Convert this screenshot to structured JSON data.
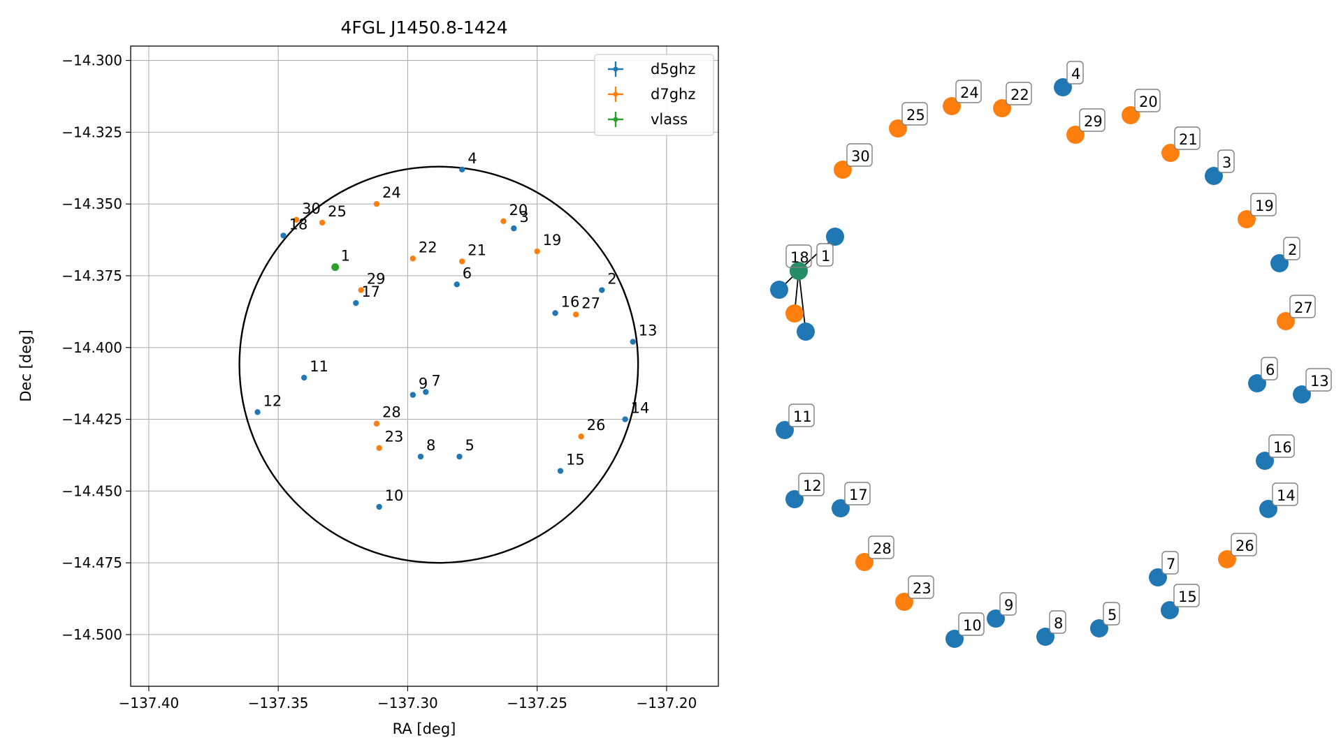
{
  "chart_data": [
    {
      "type": "scatter",
      "title": "4FGL J1450.8-1424",
      "xlabel": "RA [deg]",
      "ylabel": "Dec [deg]",
      "xlim": [
        -137.407,
        -137.18
      ],
      "ylim": [
        -14.518,
        -14.295
      ],
      "xticks": [
        -137.4,
        -137.35,
        -137.3,
        -137.25,
        -137.2
      ],
      "xtick_labels": [
        "−137.40",
        "−137.35",
        "−137.30",
        "−137.25",
        "−137.20"
      ],
      "yticks": [
        -14.3,
        -14.325,
        -14.35,
        -14.375,
        -14.4,
        -14.425,
        -14.45,
        -14.475,
        -14.5
      ],
      "ytick_labels": [
        "−14.300",
        "−14.325",
        "−14.350",
        "−14.375",
        "−14.400",
        "−14.425",
        "−14.450",
        "−14.475",
        "−14.500"
      ],
      "grid": true,
      "legend_position": "top-right",
      "circle": {
        "center": [
          -137.288,
          -14.406
        ],
        "radius_ra": 0.077,
        "radius_dec": 0.069
      },
      "series": [
        {
          "name": "d5ghz",
          "color": "#1f77b4",
          "points": [
            {
              "label": "2",
              "x": -137.225,
              "y": -14.38
            },
            {
              "label": "3",
              "x": -137.259,
              "y": -14.3585
            },
            {
              "label": "4",
              "x": -137.279,
              "y": -14.338
            },
            {
              "label": "5",
              "x": -137.28,
              "y": -14.438
            },
            {
              "label": "6",
              "x": -137.281,
              "y": -14.378
            },
            {
              "label": "7",
              "x": -137.293,
              "y": -14.4155
            },
            {
              "label": "8",
              "x": -137.295,
              "y": -14.438
            },
            {
              "label": "9",
              "x": -137.298,
              "y": -14.4165
            },
            {
              "label": "10",
              "x": -137.311,
              "y": -14.4555
            },
            {
              "label": "11",
              "x": -137.34,
              "y": -14.4105
            },
            {
              "label": "12",
              "x": -137.358,
              "y": -14.4225
            },
            {
              "label": "13",
              "x": -137.213,
              "y": -14.398
            },
            {
              "label": "14",
              "x": -137.216,
              "y": -14.425
            },
            {
              "label": "15",
              "x": -137.241,
              "y": -14.443
            },
            {
              "label": "16",
              "x": -137.243,
              "y": -14.388
            },
            {
              "label": "17",
              "x": -137.32,
              "y": -14.3845
            },
            {
              "label": "18",
              "x": -137.348,
              "y": -14.361
            }
          ]
        },
        {
          "name": "d7ghz",
          "color": "#ff7f0e",
          "points": [
            {
              "label": "19",
              "x": -137.25,
              "y": -14.3665
            },
            {
              "label": "20",
              "x": -137.263,
              "y": -14.356
            },
            {
              "label": "21",
              "x": -137.279,
              "y": -14.37
            },
            {
              "label": "22",
              "x": -137.298,
              "y": -14.369
            },
            {
              "label": "23",
              "x": -137.311,
              "y": -14.435
            },
            {
              "label": "24",
              "x": -137.312,
              "y": -14.35
            },
            {
              "label": "25",
              "x": -137.333,
              "y": -14.3565
            },
            {
              "label": "26",
              "x": -137.233,
              "y": -14.431
            },
            {
              "label": "27",
              "x": -137.235,
              "y": -14.3885
            },
            {
              "label": "28",
              "x": -137.312,
              "y": -14.4265
            },
            {
              "label": "29",
              "x": -137.318,
              "y": -14.38
            },
            {
              "label": "30",
              "x": -137.343,
              "y": -14.3555
            }
          ]
        },
        {
          "name": "vlass",
          "color": "#2ca02c",
          "points": [
            {
              "label": "1",
              "x": -137.328,
              "y": -14.372
            }
          ]
        }
      ]
    },
    {
      "type": "scatter",
      "subtype": "network-layout",
      "nodes": [
        {
          "label": "4",
          "group": "d5ghz"
        },
        {
          "label": "24",
          "group": "d7ghz"
        },
        {
          "label": "22",
          "group": "d7ghz"
        },
        {
          "label": "25",
          "group": "d7ghz"
        },
        {
          "label": "20",
          "group": "d7ghz"
        },
        {
          "label": "29",
          "group": "d7ghz"
        },
        {
          "label": "30",
          "group": "d7ghz"
        },
        {
          "label": "21",
          "group": "d7ghz"
        },
        {
          "label": "3",
          "group": "d5ghz"
        },
        {
          "label": "19",
          "group": "d7ghz"
        },
        {
          "label": "2",
          "group": "d5ghz"
        },
        {
          "label": "27",
          "group": "d7ghz"
        },
        {
          "label": "18",
          "group": "d5ghz"
        },
        {
          "label": "1",
          "group": "vlass"
        },
        {
          "label": "6",
          "group": "d5ghz"
        },
        {
          "label": "13",
          "group": "d5ghz"
        },
        {
          "label": "11",
          "group": "d5ghz"
        },
        {
          "label": "16",
          "group": "d5ghz"
        },
        {
          "label": "12",
          "group": "d5ghz"
        },
        {
          "label": "17",
          "group": "d5ghz"
        },
        {
          "label": "14",
          "group": "d5ghz"
        },
        {
          "label": "28",
          "group": "d7ghz"
        },
        {
          "label": "26",
          "group": "d7ghz"
        },
        {
          "label": "7",
          "group": "d5ghz"
        },
        {
          "label": "15",
          "group": "d5ghz"
        },
        {
          "label": "23",
          "group": "d7ghz"
        },
        {
          "label": "9",
          "group": "d5ghz"
        },
        {
          "label": "8",
          "group": "d5ghz"
        },
        {
          "label": "5",
          "group": "d5ghz"
        },
        {
          "label": "10",
          "group": "d5ghz"
        }
      ],
      "cluster_nodes": [
        {
          "label": "",
          "group": "d5ghz"
        },
        {
          "label": "",
          "group": "d5ghz"
        },
        {
          "label": "",
          "group": "d7ghz"
        },
        {
          "label": "",
          "group": "d5ghz"
        }
      ],
      "edges": [
        [
          "1",
          "c1"
        ],
        [
          "1",
          "c2"
        ],
        [
          "1",
          "c3"
        ],
        [
          "1",
          "c4"
        ]
      ]
    }
  ]
}
